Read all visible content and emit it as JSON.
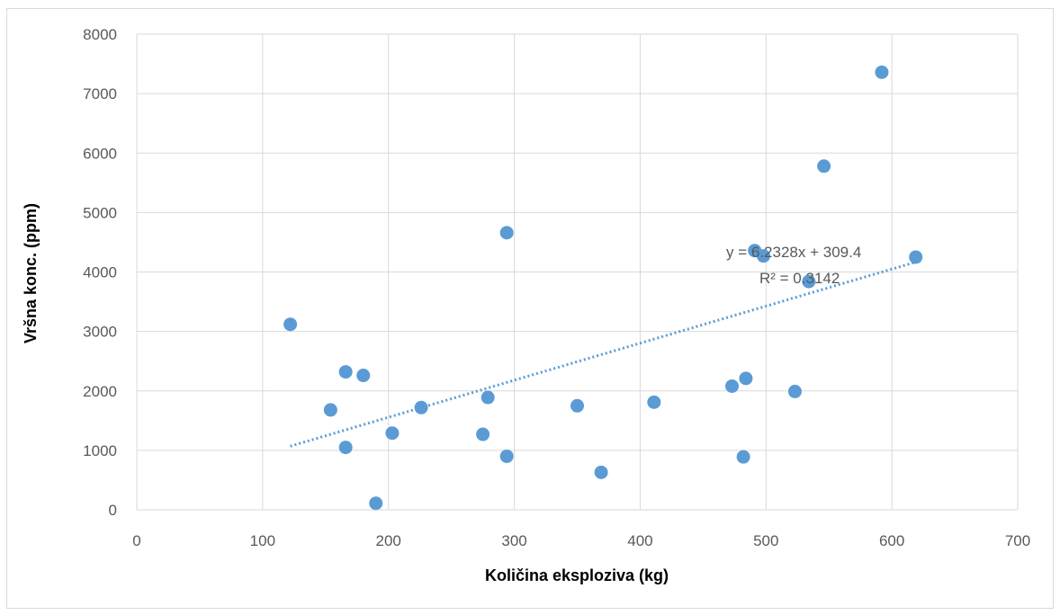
{
  "chart_data": {
    "type": "scatter",
    "title": "",
    "xlabel": "Količina eksploziva (kg)",
    "ylabel": "Vršna konc. (ppm)",
    "xlim": [
      0,
      700
    ],
    "ylim": [
      0,
      8000
    ],
    "x_ticks": [
      0,
      100,
      200,
      300,
      400,
      500,
      600,
      700
    ],
    "y_ticks": [
      0,
      1000,
      2000,
      3000,
      4000,
      5000,
      6000,
      7000,
      8000
    ],
    "x_tick_labels": [
      "0",
      "100",
      "200",
      "300",
      "400",
      "500",
      "600",
      "700"
    ],
    "y_tick_labels": [
      "0",
      "1000",
      "2000",
      "3000",
      "4000",
      "5000",
      "6000",
      "7000",
      "8000"
    ],
    "grid": true,
    "legend": "none",
    "point_color": "#5b9bd5",
    "points": [
      {
        "x": 122,
        "y": 3120
      },
      {
        "x": 154,
        "y": 1680
      },
      {
        "x": 166,
        "y": 2320
      },
      {
        "x": 166,
        "y": 1050
      },
      {
        "x": 180,
        "y": 2260
      },
      {
        "x": 190,
        "y": 110
      },
      {
        "x": 203,
        "y": 1290
      },
      {
        "x": 226,
        "y": 1720
      },
      {
        "x": 275,
        "y": 1270
      },
      {
        "x": 279,
        "y": 1890
      },
      {
        "x": 294,
        "y": 900
      },
      {
        "x": 294,
        "y": 4660
      },
      {
        "x": 350,
        "y": 1750
      },
      {
        "x": 369,
        "y": 630
      },
      {
        "x": 411,
        "y": 1810
      },
      {
        "x": 473,
        "y": 2080
      },
      {
        "x": 482,
        "y": 890
      },
      {
        "x": 484,
        "y": 2210
      },
      {
        "x": 491,
        "y": 4360
      },
      {
        "x": 498,
        "y": 4270
      },
      {
        "x": 523,
        "y": 1990
      },
      {
        "x": 534,
        "y": 3840
      },
      {
        "x": 546,
        "y": 5780
      },
      {
        "x": 592,
        "y": 7360
      },
      {
        "x": 619,
        "y": 4250
      }
    ],
    "trendline": {
      "type": "linear",
      "slope": 6.2328,
      "intercept": 309.4,
      "x_range": [
        122,
        619
      ],
      "style": "dotted",
      "color": "#5b9bd5",
      "equation_label": "y = 6.2328x + 309.4",
      "r2_label": "R² = 0.3142"
    }
  }
}
